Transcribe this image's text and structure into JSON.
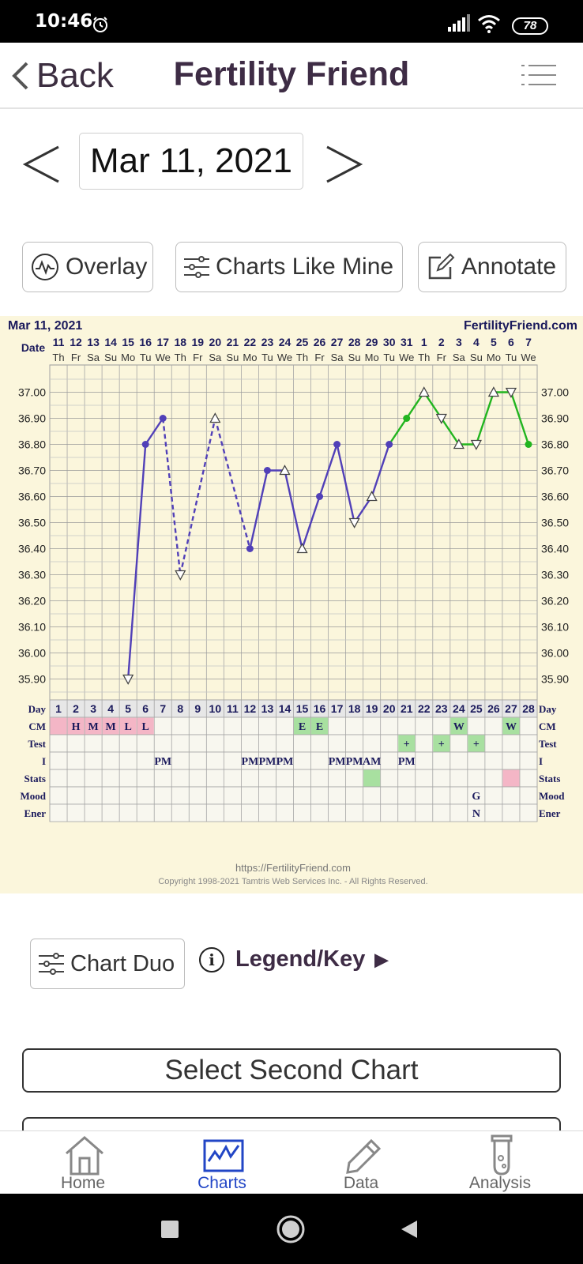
{
  "status": {
    "time": "10:46",
    "battery": "78"
  },
  "header": {
    "back_label": "Back",
    "title": "Fertility Friend"
  },
  "date_nav": {
    "date": "Mar 11, 2021"
  },
  "buttons": {
    "overlay": "Overlay",
    "charts_like_mine": "Charts Like Mine",
    "annotate": "Annotate"
  },
  "chart_header": {
    "date": "Mar 11, 2021",
    "site": "FertilityFriend.com",
    "date_label": "Date"
  },
  "chart_data": {
    "type": "line",
    "x_dates": [
      "11",
      "12",
      "13",
      "14",
      "15",
      "16",
      "17",
      "18",
      "19",
      "20",
      "21",
      "22",
      "23",
      "24",
      "25",
      "26",
      "27",
      "28",
      "29",
      "30",
      "31",
      "1",
      "2",
      "3",
      "4",
      "5",
      "6",
      "7"
    ],
    "x_weekdays": [
      "Th",
      "Fr",
      "Sa",
      "Su",
      "Mo",
      "Tu",
      "We",
      "Th",
      "Fr",
      "Sa",
      "Su",
      "Mo",
      "Tu",
      "We",
      "Th",
      "Fr",
      "Sa",
      "Su",
      "Mo",
      "Tu",
      "We",
      "Th",
      "Fr",
      "Sa",
      "Su",
      "Mo",
      "Tu",
      "We"
    ],
    "cycle_days": [
      1,
      2,
      3,
      4,
      5,
      6,
      7,
      8,
      9,
      10,
      11,
      12,
      13,
      14,
      15,
      16,
      17,
      18,
      19,
      20,
      21,
      22,
      23,
      24,
      25,
      26,
      27,
      28
    ],
    "y_ticks": [
      "37.00",
      "36.90",
      "36.80",
      "36.70",
      "36.60",
      "36.50",
      "36.40",
      "36.30",
      "36.20",
      "36.10",
      "36.00",
      "35.90"
    ],
    "ylim": [
      35.85,
      37.05
    ],
    "temps": [
      null,
      null,
      null,
      null,
      35.9,
      36.8,
      36.9,
      36.3,
      null,
      36.9,
      null,
      36.4,
      36.7,
      36.7,
      36.4,
      36.6,
      36.8,
      36.5,
      36.6,
      36.8,
      36.9,
      37.0,
      36.9,
      36.8,
      36.8,
      37.0,
      37.0,
      36.8
    ],
    "markers": [
      "",
      "",
      "",
      "",
      "tri-down",
      "dot",
      "dot",
      "tri-down",
      "",
      "tri-up",
      "",
      "dot",
      "dot",
      "tri-up",
      "tri-up",
      "dot",
      "dot",
      "tri-down",
      "tri-up",
      "dot",
      "dot",
      "tri-up",
      "tri-down",
      "tri-up",
      "tri-down",
      "tri-up",
      "tri-down",
      "dot"
    ],
    "dashed_days": [
      8,
      10,
      12
    ],
    "green_from_day": 20,
    "colors": {
      "line": "#5140b8",
      "green": "#22b51f",
      "cm_pink": "#f4b6c6",
      "cm_green": "#a8e0a0"
    },
    "row_labels": [
      "Day",
      "CM",
      "Test",
      "I",
      "Stats",
      "Mood",
      "Ener"
    ],
    "cm": [
      "",
      "H",
      "M",
      "M",
      "L",
      "L",
      "",
      "",
      "",
      "",
      "",
      "",
      "",
      "",
      "E",
      "E",
      "",
      "",
      "",
      "",
      "",
      "",
      "",
      "W",
      "",
      "",
      "W",
      ""
    ],
    "cm_colors": [
      "pink",
      "pink",
      "pink",
      "pink",
      "pink",
      "pink",
      "",
      "",
      "",
      "",
      "",
      "",
      "",
      "",
      "green",
      "green",
      "",
      "",
      "",
      "",
      "",
      "",
      "",
      "green",
      "",
      "",
      "green",
      ""
    ],
    "test": [
      "",
      "",
      "",
      "",
      "",
      "",
      "",
      "",
      "",
      "",
      "",
      "",
      "",
      "",
      "",
      "",
      "",
      "",
      "",
      "",
      "+",
      "",
      "+",
      "",
      "+",
      "",
      "",
      ""
    ],
    "intercourse": [
      "",
      "",
      "",
      "",
      "",
      "",
      "PM",
      "",
      "",
      "",
      "",
      "PM",
      "PM",
      "PM",
      "",
      "",
      "PM",
      "PM",
      "AM",
      "",
      "PM",
      "",
      "",
      "",
      "",
      "",
      "",
      ""
    ],
    "stats_colors": [
      "",
      "",
      "",
      "",
      "",
      "",
      "",
      "",
      "",
      "",
      "",
      "",
      "",
      "",
      "",
      "",
      "",
      "",
      "green",
      "",
      "",
      "",
      "",
      "",
      "",
      "",
      "pink",
      ""
    ],
    "mood": [
      "",
      "",
      "",
      "",
      "",
      "",
      "",
      "",
      "",
      "",
      "",
      "",
      "",
      "",
      "",
      "",
      "",
      "",
      "",
      "",
      "",
      "",
      "",
      "",
      "G",
      "",
      "",
      ""
    ],
    "energy": [
      "",
      "",
      "",
      "",
      "",
      "",
      "",
      "",
      "",
      "",
      "",
      "",
      "",
      "",
      "",
      "",
      "",
      "",
      "",
      "",
      "",
      "",
      "",
      "",
      "N",
      "",
      "",
      ""
    ]
  },
  "chart_footer": {
    "url": "https://FertilityFriend.com",
    "copyright": "Copyright 1998-2021 Tamtris Web Services Inc. - All Rights Reserved."
  },
  "bottom": {
    "chart_duo": "Chart Duo",
    "legend": "Legend/Key",
    "select_second": "Select Second Chart"
  },
  "tabs": [
    {
      "label": "Home",
      "icon": "home-icon"
    },
    {
      "label": "Charts",
      "icon": "chart-icon"
    },
    {
      "label": "Data",
      "icon": "pencil-icon"
    },
    {
      "label": "Analysis",
      "icon": "test-tube-icon"
    }
  ]
}
